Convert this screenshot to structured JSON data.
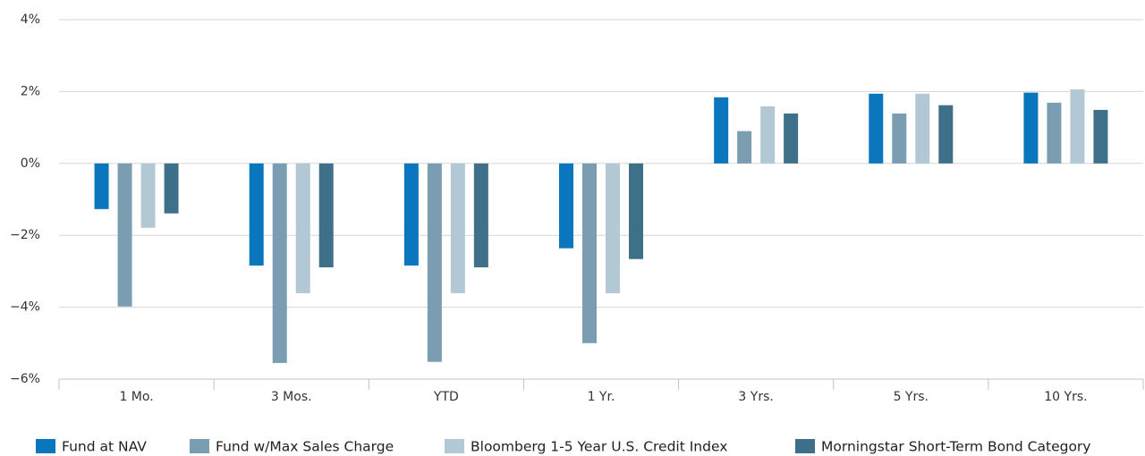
{
  "chart_data": {
    "type": "bar",
    "categories": [
      "1 Mo.",
      "3 Mos.",
      "YTD",
      "1 Yr.",
      "3 Yrs.",
      "5 Yrs.",
      "10 Yrs."
    ],
    "series": [
      {
        "name": "Fund at NAV",
        "color": "#0a76bd",
        "values": [
          -1.27,
          -2.84,
          -2.84,
          -2.36,
          1.84,
          1.94,
          1.97
        ]
      },
      {
        "name": "Fund w/Max Sales Charge",
        "color": "#7a9db2",
        "values": [
          -3.98,
          -5.55,
          -5.52,
          -5.0,
          0.9,
          1.39,
          1.69
        ]
      },
      {
        "name": "Bloomberg 1-5 Year U.S. Credit Index",
        "color": "#b2c8d4",
        "values": [
          -1.79,
          -3.61,
          -3.61,
          -3.61,
          1.59,
          1.94,
          2.06
        ]
      },
      {
        "name": "Morningstar Short-Term Bond Category",
        "color": "#3e7189",
        "values": [
          -1.39,
          -2.89,
          -2.89,
          -2.66,
          1.39,
          1.62,
          1.49
        ]
      }
    ],
    "ylim": [
      -6,
      4
    ],
    "yticks": [
      {
        "value": -6,
        "label": "−6%"
      },
      {
        "value": -4,
        "label": "−4%"
      },
      {
        "value": -2,
        "label": "−2%"
      },
      {
        "value": 0,
        "label": "0%"
      },
      {
        "value": 2,
        "label": "2%"
      },
      {
        "value": 4,
        "label": "4%"
      }
    ],
    "grid": true,
    "legend": "bottom"
  }
}
